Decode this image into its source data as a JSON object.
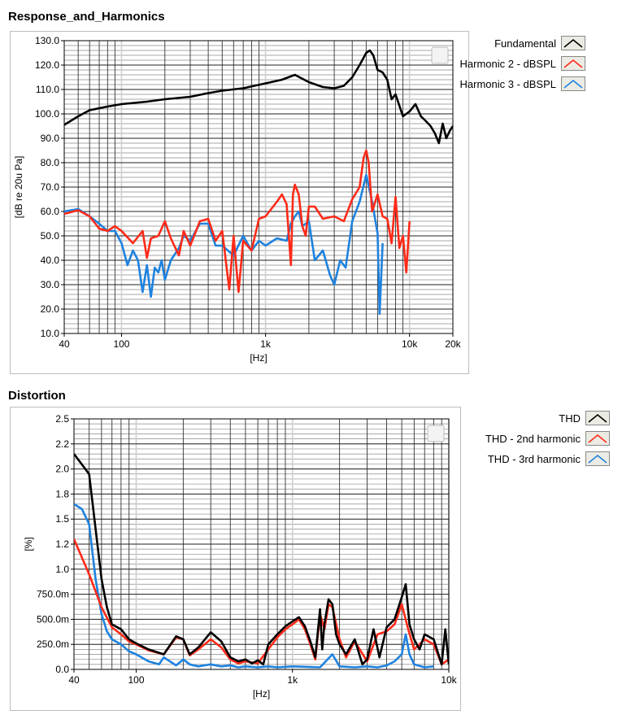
{
  "chart_data": [
    {
      "type": "line",
      "title": "Response_and_Harmonics",
      "xlabel": "[Hz]",
      "ylabel": "[dB re 20u Pa]",
      "xscale": "log",
      "xlim": [
        40,
        20000
      ],
      "ylim": [
        10,
        130
      ],
      "grid": true,
      "legend": "right",
      "x_ticks": [
        40,
        100,
        1000,
        10000,
        20000
      ],
      "x_tick_labels": [
        "40",
        "100",
        "1k",
        "10k",
        "20k"
      ],
      "y_ticks": [
        10,
        20,
        30,
        40,
        50,
        60,
        70,
        80,
        90,
        100,
        110,
        120,
        130
      ],
      "y_tick_labels": [
        "10.0",
        "20.0",
        "30.0",
        "40.0",
        "50.0",
        "60.0",
        "70.0",
        "80.0",
        "90.0",
        "100.0",
        "110.0",
        "120.0",
        "130.0"
      ],
      "series": [
        {
          "name": "Fundamental",
          "color": "#000000",
          "x": [
            40,
            50,
            60,
            80,
            100,
            150,
            200,
            300,
            400,
            500,
            700,
            1000,
            1300,
            1600,
            2000,
            2500,
            3000,
            3500,
            4000,
            4500,
            5000,
            5300,
            5600,
            6000,
            6500,
            7000,
            7500,
            8000,
            9000,
            10000,
            11000,
            12000,
            13000,
            14000,
            15000,
            16000,
            17000,
            18000,
            19000,
            20000
          ],
          "y": [
            95.5,
            99,
            101.5,
            103,
            104,
            105,
            106,
            107,
            108.5,
            109.5,
            110.5,
            112.5,
            114,
            116,
            113,
            111,
            110.5,
            111.5,
            115,
            120,
            125,
            126,
            124,
            118,
            117,
            114,
            106,
            108,
            99,
            101,
            104,
            99,
            97,
            95,
            92,
            88,
            96,
            90,
            93,
            95
          ]
        },
        {
          "name": "Harmonic 2 - dBSPL",
          "color": "#ff2a18",
          "x": [
            40,
            50,
            60,
            70,
            80,
            90,
            100,
            120,
            140,
            150,
            160,
            180,
            200,
            220,
            250,
            270,
            300,
            350,
            400,
            450,
            500,
            560,
            600,
            650,
            700,
            800,
            900,
            1000,
            1200,
            1300,
            1400,
            1500,
            1550,
            1600,
            1700,
            1800,
            1900,
            2000,
            2200,
            2500,
            3000,
            3500,
            4000,
            4500,
            4800,
            5000,
            5200,
            5500,
            6000,
            6500,
            7000,
            7500,
            8000,
            8500,
            9000,
            9500,
            10000
          ],
          "y": [
            59,
            60.5,
            58,
            53,
            52,
            54,
            52,
            47,
            52,
            41,
            49,
            50,
            56,
            49,
            42,
            52,
            46,
            56,
            57,
            48,
            52,
            28,
            50,
            27,
            48,
            44,
            57,
            58,
            64,
            67,
            63,
            38,
            67,
            71,
            67,
            54,
            50,
            62,
            62,
            57,
            58,
            56,
            65,
            70,
            82,
            85,
            80,
            60,
            67,
            58,
            57,
            47,
            66,
            45,
            50,
            35,
            56
          ]
        },
        {
          "name": "Harmonic 3 - dBSPL",
          "color": "#1e82df",
          "x": [
            40,
            50,
            60,
            70,
            80,
            90,
            100,
            110,
            120,
            130,
            140,
            150,
            160,
            170,
            180,
            190,
            200,
            220,
            250,
            270,
            300,
            350,
            400,
            450,
            500,
            600,
            700,
            800,
            900,
            1000,
            1200,
            1400,
            1500,
            1600,
            1700,
            1800,
            2000,
            2200,
            2500,
            2800,
            3000,
            3300,
            3600,
            4000,
            4500,
            5000,
            5500,
            6000,
            6200,
            6500
          ],
          "y": [
            60,
            61,
            58,
            55,
            52,
            52,
            47,
            38,
            44,
            40,
            27,
            38,
            25,
            37,
            35,
            40,
            32,
            40,
            45,
            50,
            48,
            55,
            55,
            46,
            46,
            42,
            50,
            44,
            48,
            46,
            49,
            48,
            55,
            58,
            60,
            54,
            56,
            40,
            44,
            34,
            30,
            40,
            37,
            56,
            64,
            75,
            64,
            51,
            18,
            47
          ]
        }
      ]
    },
    {
      "type": "line",
      "title": "Distortion",
      "xlabel": "[Hz]",
      "ylabel": "[%]",
      "xscale": "log",
      "xlim": [
        40,
        10000
      ],
      "ylim": [
        0,
        2.5
      ],
      "grid": true,
      "legend": "right",
      "x_ticks": [
        40,
        100,
        1000,
        10000
      ],
      "x_tick_labels": [
        "40",
        "100",
        "1k",
        "10k"
      ],
      "y_ticks": [
        0,
        0.25,
        0.5,
        0.75,
        1.0,
        1.25,
        1.5,
        1.75,
        2.0,
        2.25,
        2.5
      ],
      "y_tick_labels": [
        "0.0",
        "250.0m",
        "500.0m",
        "750.0m",
        "1.0",
        "1.2",
        "1.5",
        "1.8",
        "2.0",
        "2.2",
        "2.5"
      ],
      "series": [
        {
          "name": "THD",
          "color": "#000000",
          "x": [
            40,
            50,
            55,
            60,
            65,
            70,
            80,
            90,
            100,
            120,
            150,
            180,
            200,
            220,
            250,
            300,
            350,
            400,
            450,
            500,
            550,
            600,
            650,
            700,
            800,
            900,
            1000,
            1100,
            1200,
            1300,
            1400,
            1500,
            1550,
            1600,
            1700,
            1800,
            1900,
            2000,
            2200,
            2500,
            2800,
            3000,
            3300,
            3600,
            4000,
            4500,
            5000,
            5300,
            5600,
            6000,
            6500,
            7000,
            8000,
            9000,
            9500,
            10000
          ],
          "y": [
            2.15,
            1.95,
            1.4,
            0.9,
            0.62,
            0.45,
            0.4,
            0.3,
            0.26,
            0.2,
            0.15,
            0.33,
            0.3,
            0.15,
            0.22,
            0.37,
            0.28,
            0.12,
            0.08,
            0.1,
            0.06,
            0.09,
            0.05,
            0.25,
            0.35,
            0.43,
            0.48,
            0.52,
            0.43,
            0.28,
            0.12,
            0.6,
            0.2,
            0.45,
            0.7,
            0.65,
            0.35,
            0.25,
            0.15,
            0.3,
            0.05,
            0.1,
            0.4,
            0.12,
            0.42,
            0.5,
            0.72,
            0.85,
            0.45,
            0.3,
            0.2,
            0.35,
            0.3,
            0.05,
            0.4,
            0.05
          ]
        },
        {
          "name": "THD - 2nd harmonic",
          "color": "#ff2a18",
          "x": [
            40,
            50,
            60,
            70,
            80,
            90,
            100,
            120,
            150,
            180,
            200,
            220,
            250,
            300,
            350,
            400,
            450,
            500,
            600,
            700,
            800,
            900,
            1000,
            1100,
            1200,
            1300,
            1400,
            1500,
            1600,
            1700,
            1800,
            2000,
            2200,
            2500,
            3000,
            3500,
            4000,
            4500,
            5000,
            5500,
            6000,
            7000,
            8000,
            9000,
            10000
          ],
          "y": [
            1.3,
            0.95,
            0.62,
            0.42,
            0.35,
            0.28,
            0.25,
            0.19,
            0.15,
            0.32,
            0.3,
            0.14,
            0.2,
            0.3,
            0.22,
            0.1,
            0.06,
            0.08,
            0.06,
            0.2,
            0.32,
            0.4,
            0.45,
            0.5,
            0.4,
            0.25,
            0.1,
            0.55,
            0.4,
            0.65,
            0.62,
            0.3,
            0.12,
            0.28,
            0.08,
            0.35,
            0.38,
            0.45,
            0.65,
            0.4,
            0.2,
            0.3,
            0.25,
            0.05,
            0.1
          ]
        },
        {
          "name": "THD - 3rd harmonic",
          "color": "#1e82df",
          "x": [
            40,
            45,
            50,
            55,
            60,
            65,
            70,
            80,
            90,
            100,
            120,
            140,
            150,
            180,
            200,
            220,
            250,
            300,
            350,
            400,
            450,
            500,
            600,
            700,
            800,
            1000,
            1500,
            1800,
            2000,
            2500,
            3000,
            3500,
            4000,
            4500,
            5000,
            5300,
            5600,
            6000,
            7000,
            8000
          ],
          "y": [
            1.65,
            1.6,
            1.45,
            0.9,
            0.55,
            0.38,
            0.3,
            0.25,
            0.18,
            0.15,
            0.08,
            0.05,
            0.12,
            0.04,
            0.1,
            0.05,
            0.03,
            0.05,
            0.03,
            0.04,
            0.02,
            0.03,
            0.02,
            0.03,
            0.02,
            0.03,
            0.02,
            0.15,
            0.03,
            0.02,
            0.03,
            0.02,
            0.04,
            0.08,
            0.15,
            0.35,
            0.15,
            0.05,
            0.02,
            0.03
          ]
        }
      ]
    }
  ]
}
